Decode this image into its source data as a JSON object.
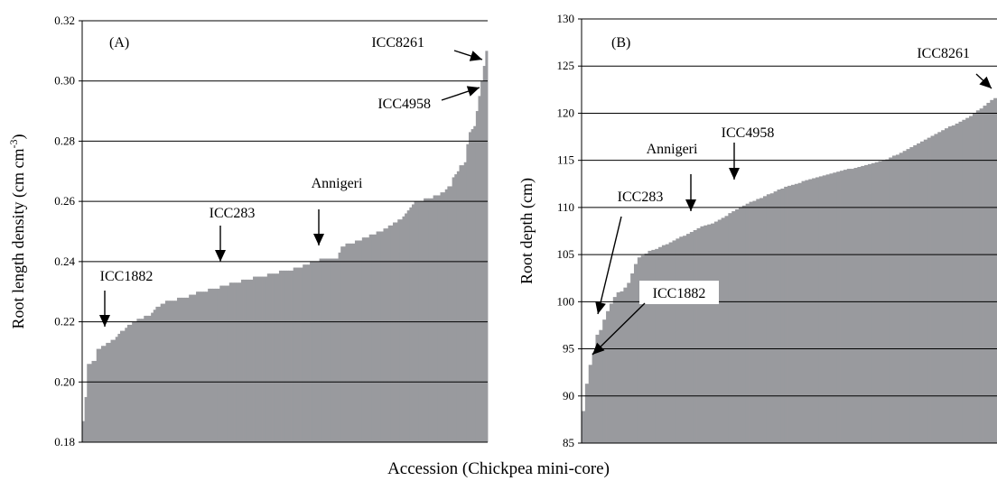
{
  "xlabel": "Accession (Chickpea mini-core)",
  "bar_color": "#999a9e",
  "chart_data": [
    {
      "type": "bar",
      "panel": "(A)",
      "ylabel_main": "Root length density (cm cm",
      "ylabel_sup": "-3",
      "ylabel_end": ")",
      "ylim": [
        0.18,
        0.32
      ],
      "yticks": [
        "0.18",
        "0.20",
        "0.22",
        "0.24",
        "0.26",
        "0.28",
        "0.30",
        "0.32"
      ],
      "grid": true,
      "values": [
        0.187,
        0.195,
        0.206,
        0.206,
        0.207,
        0.207,
        0.211,
        0.211,
        0.212,
        0.212,
        0.213,
        0.213,
        0.214,
        0.214,
        0.215,
        0.216,
        0.217,
        0.217,
        0.218,
        0.219,
        0.219,
        0.22,
        0.22,
        0.221,
        0.221,
        0.221,
        0.222,
        0.222,
        0.222,
        0.223,
        0.224,
        0.225,
        0.225,
        0.226,
        0.226,
        0.227,
        0.227,
        0.227,
        0.227,
        0.227,
        0.228,
        0.228,
        0.228,
        0.228,
        0.228,
        0.229,
        0.229,
        0.229,
        0.23,
        0.23,
        0.23,
        0.23,
        0.23,
        0.231,
        0.231,
        0.231,
        0.231,
        0.231,
        0.232,
        0.232,
        0.232,
        0.232,
        0.233,
        0.233,
        0.233,
        0.233,
        0.233,
        0.234,
        0.234,
        0.234,
        0.234,
        0.234,
        0.235,
        0.235,
        0.235,
        0.235,
        0.235,
        0.235,
        0.236,
        0.236,
        0.236,
        0.236,
        0.236,
        0.237,
        0.237,
        0.237,
        0.237,
        0.237,
        0.237,
        0.238,
        0.238,
        0.238,
        0.238,
        0.239,
        0.239,
        0.239,
        0.24,
        0.24,
        0.24,
        0.24,
        0.241,
        0.241,
        0.241,
        0.241,
        0.241,
        0.241,
        0.241,
        0.241,
        0.243,
        0.245,
        0.245,
        0.246,
        0.246,
        0.246,
        0.246,
        0.247,
        0.247,
        0.247,
        0.248,
        0.248,
        0.248,
        0.249,
        0.249,
        0.249,
        0.25,
        0.25,
        0.25,
        0.251,
        0.251,
        0.252,
        0.252,
        0.253,
        0.253,
        0.254,
        0.254,
        0.255,
        0.256,
        0.257,
        0.258,
        0.259,
        0.26,
        0.26,
        0.26,
        0.26,
        0.261,
        0.261,
        0.261,
        0.261,
        0.262,
        0.262,
        0.262,
        0.263,
        0.263,
        0.264,
        0.265,
        0.265,
        0.268,
        0.269,
        0.27,
        0.272,
        0.272,
        0.273,
        0.279,
        0.283,
        0.284,
        0.285,
        0.29,
        0.295,
        0.3,
        0.305,
        0.31
      ],
      "annotations": [
        {
          "label": "ICC8261",
          "x_index": 171
        },
        {
          "label": "ICC4958",
          "x_index": 169
        },
        {
          "label": "Annigeri",
          "x_index": 98
        },
        {
          "label": "ICC283",
          "x_index": 58
        },
        {
          "label": "ICC1882",
          "x_index": 10
        }
      ]
    },
    {
      "type": "bar",
      "panel": "(B)",
      "ylabel_main": "Root depth (cm)",
      "ylim": [
        85,
        130
      ],
      "yticks": [
        "85",
        "90",
        "95",
        "100",
        "105",
        "110",
        "115",
        "120",
        "125",
        "130"
      ],
      "grid": true,
      "values": [
        88.4,
        91.3,
        93.3,
        94.6,
        96.5,
        97.0,
        98.1,
        99.0,
        99.8,
        100.5,
        101.0,
        101.1,
        101.5,
        102.0,
        103.0,
        104.0,
        104.7,
        104.9,
        105.1,
        105.4,
        105.5,
        105.6,
        105.8,
        106.0,
        106.1,
        106.3,
        106.5,
        106.7,
        106.9,
        107.0,
        107.2,
        107.4,
        107.6,
        107.8,
        108.0,
        108.1,
        108.2,
        108.3,
        108.5,
        108.7,
        108.9,
        109.1,
        109.4,
        109.6,
        109.8,
        110.0,
        110.2,
        110.4,
        110.6,
        110.7,
        110.9,
        111.0,
        111.2,
        111.4,
        111.5,
        111.7,
        111.9,
        112.0,
        112.2,
        112.3,
        112.4,
        112.5,
        112.6,
        112.8,
        112.9,
        113.0,
        113.1,
        113.2,
        113.3,
        113.4,
        113.5,
        113.6,
        113.7,
        113.8,
        113.9,
        114.0,
        114.1,
        114.1,
        114.2,
        114.3,
        114.4,
        114.5,
        114.6,
        114.7,
        114.8,
        114.9,
        115.0,
        115.1,
        115.3,
        115.5,
        115.6,
        115.8,
        116.0,
        116.2,
        116.4,
        116.6,
        116.8,
        117.0,
        117.2,
        117.4,
        117.6,
        117.8,
        118.0,
        118.2,
        118.4,
        118.6,
        118.7,
        118.9,
        119.1,
        119.3,
        119.5,
        119.7,
        120.0,
        120.3,
        120.5,
        120.8,
        121.1,
        121.4,
        121.6
      ],
      "annotations": [
        {
          "label": "ICC8261",
          "x_index": 116
        },
        {
          "label": "ICC4958",
          "x_index": 43
        },
        {
          "label": "Annigeri",
          "x_index": 32
        },
        {
          "label": "ICC283",
          "x_index": 7
        },
        {
          "label": "ICC1882",
          "x_index": 3
        }
      ]
    }
  ]
}
